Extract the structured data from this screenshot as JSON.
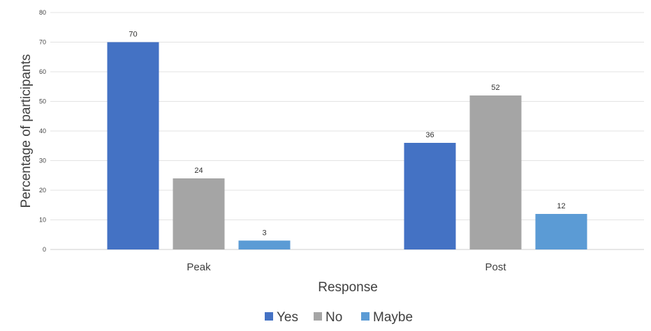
{
  "chart_data": {
    "type": "bar",
    "title": "",
    "xlabel": "Response",
    "ylabel": "Percentage of participants",
    "categories": [
      "Peak",
      "Post"
    ],
    "series": [
      {
        "name": "Yes",
        "values": [
          70,
          36
        ],
        "color": "#4472C4"
      },
      {
        "name": "No",
        "values": [
          24,
          52
        ],
        "color": "#A5A5A5"
      },
      {
        "name": "Maybe",
        "values": [
          3,
          12
        ],
        "color": "#5B9BD5"
      }
    ],
    "ylim": [
      0,
      80
    ],
    "yticks": [
      0,
      10,
      20,
      30,
      40,
      50,
      60,
      70,
      80
    ],
    "grid": true,
    "legend": "bottom",
    "data_labels": true
  }
}
